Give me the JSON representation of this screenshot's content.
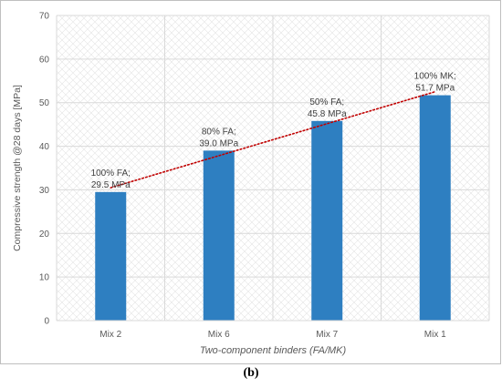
{
  "panel_label": "(b)",
  "chart_data": {
    "type": "bar",
    "categories": [
      "Mix 2",
      "Mix 6",
      "Mix 7",
      "Mix 1"
    ],
    "values": [
      29.5,
      39.0,
      45.8,
      51.7
    ],
    "data_labels": [
      [
        "100% FA;",
        "29.5 MPa"
      ],
      [
        "80% FA;",
        "39.0 MPa"
      ],
      [
        "50% FA;",
        "45.8 MPa"
      ],
      [
        "100% MK;",
        "51.7 MPa"
      ]
    ],
    "title": "",
    "xlabel": "Two-component binders (FA/MK)",
    "ylabel": "Compressive strength @28 days [MPa]",
    "ylim": [
      0,
      70
    ],
    "yticks": [
      0,
      10,
      20,
      30,
      40,
      50,
      60,
      70
    ],
    "ytick_labels": [
      "0",
      "10",
      "20",
      "30",
      "40",
      "50",
      "60",
      "70"
    ],
    "grid": true,
    "grid_pattern": "diagonal-hatch",
    "trendline": {
      "type": "linear",
      "style": "dotted",
      "color": "#c00000"
    },
    "colors": {
      "bar": "#2e7fc1",
      "axis_text": "#595959",
      "gridline": "#d9d9d9",
      "hatch": "#e4e4e4",
      "frame": "#bfbfbf"
    }
  }
}
